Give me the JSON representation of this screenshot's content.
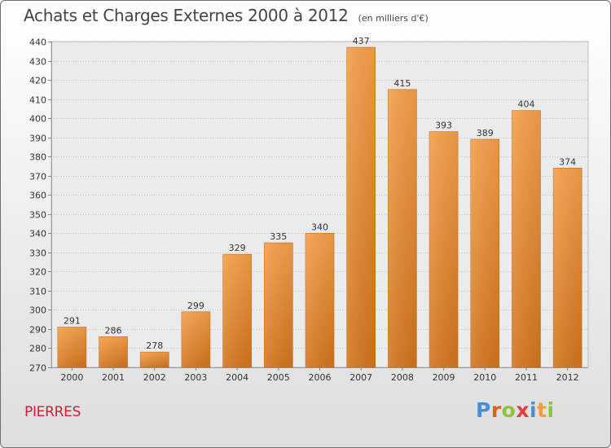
{
  "header": {
    "title": "Achats et Charges Externes 2000 à 2012",
    "unit": "(en milliers d'€)"
  },
  "commune": "PIERRES",
  "logo": {
    "letters": [
      "P",
      "r",
      "o",
      "x",
      "i",
      "t",
      "i"
    ],
    "colors": [
      "#4a8ed0",
      "#e65a28",
      "#8cc43c",
      "#e83c3c",
      "#4a8ed0",
      "#f0a030",
      "#8cc43c"
    ]
  },
  "chart_data": {
    "type": "bar",
    "title": "Achats et Charges Externes 2000 à 2012",
    "subtitle": "(en milliers d'€)",
    "categories": [
      "2000",
      "2001",
      "2002",
      "2003",
      "2004",
      "2005",
      "2006",
      "2007",
      "2008",
      "2009",
      "2010",
      "2011",
      "2012"
    ],
    "values": [
      291,
      286,
      278,
      299,
      329,
      335,
      340,
      437,
      415,
      393,
      389,
      404,
      374
    ],
    "ylim": [
      270,
      440
    ],
    "yticks": [
      270,
      280,
      290,
      300,
      310,
      320,
      330,
      340,
      350,
      360,
      370,
      380,
      390,
      400,
      410,
      420,
      430,
      440
    ],
    "grid": "horizontal",
    "bar_color": "#f5a04a",
    "bar_color_dark": "#d2761e",
    "data_labels": true
  }
}
